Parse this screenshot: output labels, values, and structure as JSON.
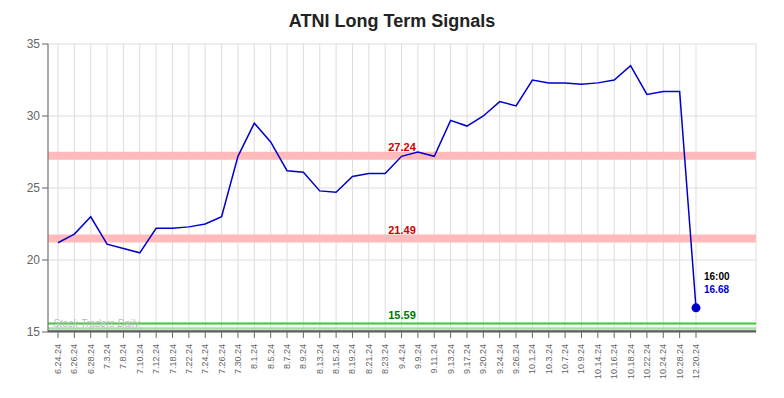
{
  "chart_data": {
    "type": "line",
    "title": "ATNI Long Term Signals",
    "categories": [
      "6.24.24",
      "6.26.24",
      "6.28.24",
      "7.3.24",
      "7.8.24",
      "7.10.24",
      "7.12.24",
      "7.18.24",
      "7.22.24",
      "7.24.24",
      "7.26.24",
      "7.30.24",
      "8.1.24",
      "8.5.24",
      "8.7.24",
      "8.9.24",
      "8.13.24",
      "8.15.24",
      "8.19.24",
      "8.21.24",
      "8.23.24",
      "9.4.24",
      "9.9.24",
      "9.11.24",
      "9.13.24",
      "9.17.24",
      "9.20.24",
      "9.24.24",
      "9.26.24",
      "10.1.24",
      "10.3.24",
      "10.7.24",
      "10.9.24",
      "10.14.24",
      "10.16.24",
      "10.18.24",
      "10.22.24",
      "10.24.24",
      "10.28.24",
      "12.20.24"
    ],
    "values": [
      21.2,
      21.8,
      23.0,
      21.1,
      20.8,
      20.5,
      22.2,
      22.2,
      22.3,
      22.5,
      23.0,
      27.2,
      29.5,
      28.2,
      26.2,
      26.1,
      24.8,
      24.7,
      25.8,
      26.0,
      26.0,
      27.2,
      27.5,
      27.2,
      29.7,
      29.3,
      30.0,
      31.0,
      30.7,
      32.5,
      32.3,
      32.3,
      32.2,
      32.3,
      32.5,
      33.5,
      31.5,
      31.7,
      31.7,
      16.68
    ],
    "color": "#0000CC",
    "ylim": [
      15.0,
      35.0
    ],
    "yticks": [
      15,
      20,
      25,
      30,
      35
    ],
    "grid": true,
    "reference_lines": [
      {
        "value": 27.24,
        "color": "#ffbbbb",
        "label": "27.24",
        "label_color": "#cc0000"
      },
      {
        "value": 21.49,
        "color": "#ffbbbb",
        "label": "21.49",
        "label_color": "#cc0000"
      },
      {
        "value": 15.59,
        "color": "#33cc33",
        "label": "15.59",
        "label_color": "#007700"
      },
      {
        "value": 15.25,
        "color": "#aaddaa"
      },
      {
        "value": 15.05,
        "color": "#555555"
      }
    ],
    "annotations": [
      {
        "text": "Stock Traders Daily",
        "color": "#bbbbbb"
      },
      {
        "text": "16:00",
        "color": "#000000"
      },
      {
        "text": "16.68",
        "color": "#0000CC"
      }
    ]
  }
}
